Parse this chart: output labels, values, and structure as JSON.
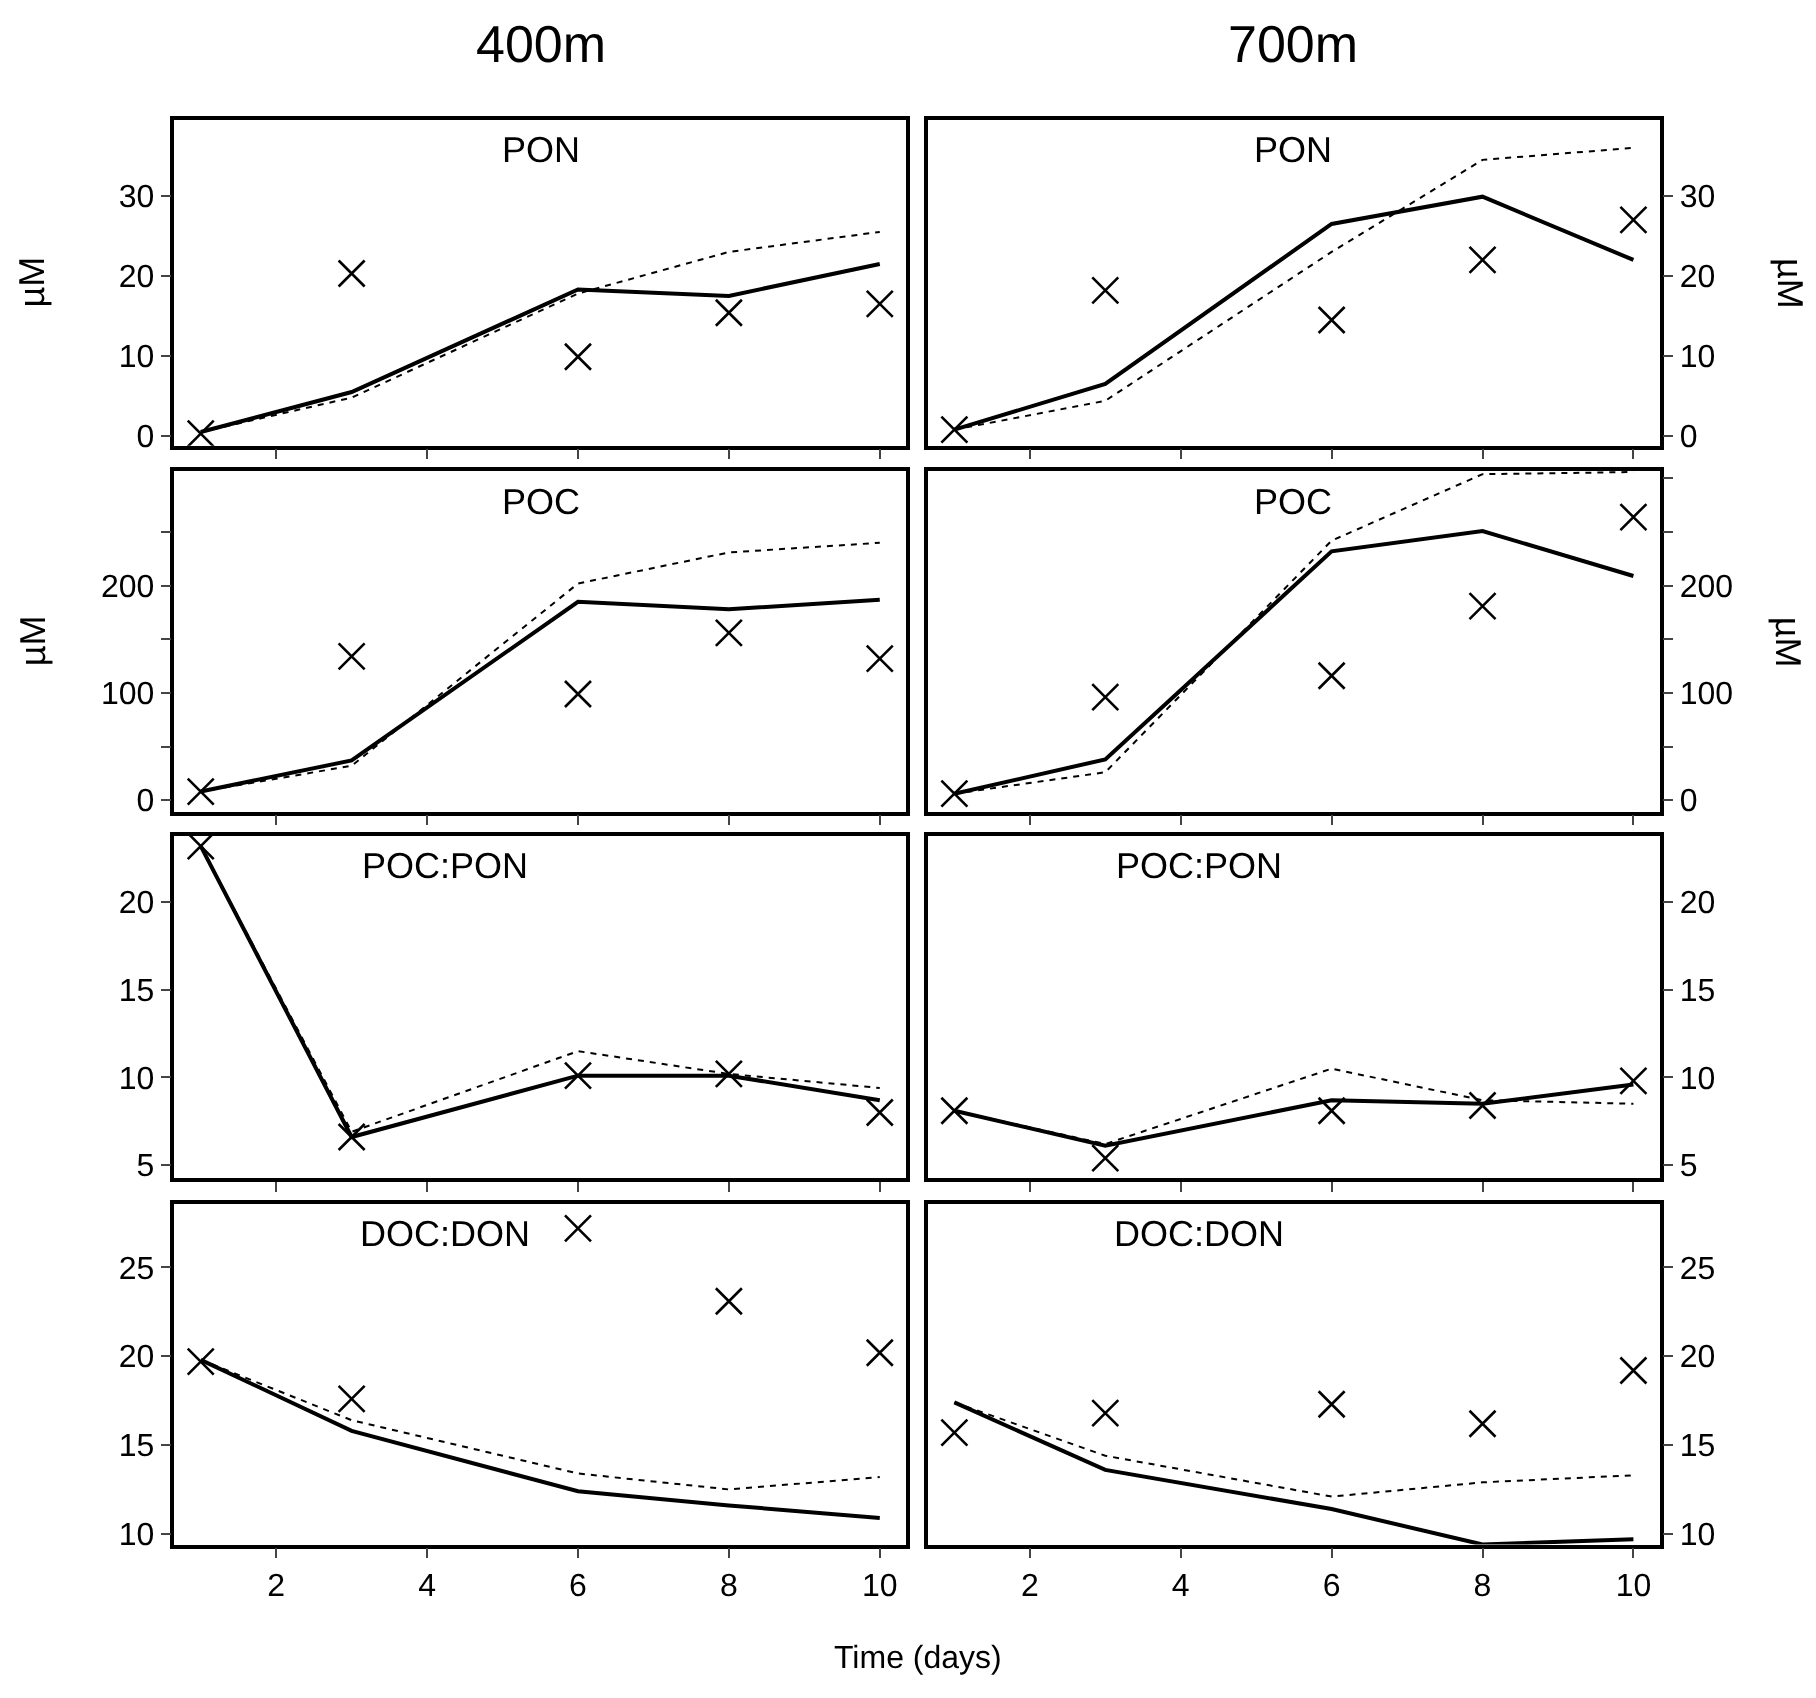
{
  "chart_data": [
    {
      "type": "line",
      "title": "400m",
      "annotations": [
        "PON"
      ],
      "ylabel": "µM",
      "x": [
        1,
        3,
        6,
        8,
        10
      ],
      "xlim": [
        0.65,
        10.35
      ],
      "xticks": [
        {
          "value": 2,
          "label": null
        },
        {
          "value": 4,
          "label": null
        },
        {
          "value": 6,
          "label": null
        },
        {
          "value": 8,
          "label": null
        },
        {
          "value": 10,
          "label": null
        }
      ],
      "ylim": [
        -1.2,
        39.5
      ],
      "yticks": [
        0,
        10,
        20,
        30
      ],
      "tick_labels": "y",
      "series": [
        {
          "color": "#000000",
          "line_style": "solid",
          "values": [
            0.5,
            5.5,
            18.3,
            17.5,
            21.5
          ]
        },
        {
          "color": "#000000",
          "line_style": "dotted",
          "values": [
            0.5,
            4.8,
            17.8,
            23,
            25.5
          ]
        },
        {
          "type": "scatter",
          "color": "#000000",
          "marker": "cross",
          "values": [
            0.3,
            20.3,
            9.9,
            15.4,
            16.5
          ]
        }
      ]
    },
    {
      "type": "line",
      "title": "700m",
      "annotations": [
        "PON"
      ],
      "ylabel": "µM",
      "x": [
        1,
        3,
        6,
        8,
        10
      ],
      "xlim": [
        0.65,
        10.35
      ],
      "xticks": [
        {
          "value": 2,
          "label": null
        },
        {
          "value": 4,
          "label": null
        },
        {
          "value": 6,
          "label": null
        },
        {
          "value": 8,
          "label": null
        },
        {
          "value": 10,
          "label": null
        }
      ],
      "ylim": [
        -1.2,
        39.5
      ],
      "yticks": [
        0,
        10,
        20,
        30
      ],
      "tick_labels": "y",
      "series": [
        {
          "color": "#000000",
          "line_style": "solid",
          "values": [
            0.8,
            6.5,
            26.5,
            29.9,
            22.0
          ]
        },
        {
          "color": "#000000",
          "line_style": "dotted",
          "values": [
            0.8,
            4.4,
            23,
            34.5,
            36
          ]
        },
        {
          "type": "scatter",
          "color": "#000000",
          "marker": "cross",
          "values": [
            0.8,
            18.2,
            14.5,
            22,
            27
          ]
        }
      ]
    },
    {
      "type": "line",
      "annotations": [
        "POC"
      ],
      "ylabel": "µM",
      "x": [
        1,
        3,
        6,
        8,
        10
      ],
      "xlim": [
        0.65,
        10.35
      ],
      "xticks": [
        {
          "value": 2,
          "label": null
        },
        {
          "value": 4,
          "label": null
        },
        {
          "value": 6,
          "label": null
        },
        {
          "value": 8,
          "label": null
        },
        {
          "value": 10,
          "label": null
        }
      ],
      "ylim": [
        -11,
        307
      ],
      "yticks": [
        0,
        {
          "value": 50,
          "label": null
        },
        100,
        {
          "value": 150,
          "label": null
        },
        200,
        {
          "value": 250,
          "label": null
        }
      ],
      "tick_labels": "y",
      "series": [
        {
          "color": "#000000",
          "line_style": "solid",
          "values": [
            8,
            37,
            185,
            178,
            187
          ]
        },
        {
          "color": "#000000",
          "line_style": "dotted",
          "values": [
            8,
            32,
            202,
            231,
            240
          ]
        },
        {
          "type": "scatter",
          "color": "#000000",
          "marker": "cross",
          "values": [
            8,
            134,
            99,
            156,
            132
          ]
        }
      ]
    },
    {
      "type": "line",
      "annotations": [
        "POC"
      ],
      "ylabel": "µM",
      "x": [
        1,
        3,
        6,
        8,
        10
      ],
      "xlim": [
        0.65,
        10.35
      ],
      "xticks": [
        {
          "value": 2,
          "label": null
        },
        {
          "value": 4,
          "label": null
        },
        {
          "value": 6,
          "label": null
        },
        {
          "value": 8,
          "label": null
        },
        {
          "value": 10,
          "label": null
        }
      ],
      "ylim": [
        -11,
        307
      ],
      "yticks": [
        0,
        {
          "value": 50,
          "label": null
        },
        100,
        {
          "value": 150,
          "label": null
        },
        200,
        {
          "value": 250,
          "label": null
        },
        {
          "value": 300,
          "label": null
        }
      ],
      "tick_labels": "y",
      "series": [
        {
          "color": "#000000",
          "line_style": "solid",
          "values": [
            6,
            38,
            232,
            251,
            209
          ]
        },
        {
          "color": "#000000",
          "line_style": "dotted",
          "values": [
            6,
            26,
            242,
            304,
            306
          ]
        },
        {
          "type": "scatter",
          "color": "#000000",
          "marker": "cross",
          "values": [
            6,
            96,
            116,
            181,
            264
          ]
        }
      ]
    },
    {
      "type": "line",
      "annotations": [
        "POC:PON"
      ],
      "x": [
        1,
        3,
        6,
        8,
        10
      ],
      "xlim": [
        0.65,
        10.35
      ],
      "xticks": [
        {
          "value": 2,
          "label": null
        },
        {
          "value": 4,
          "label": null
        },
        {
          "value": 6,
          "label": null
        },
        {
          "value": 8,
          "label": null
        },
        {
          "value": 10,
          "label": null
        }
      ],
      "ylim": [
        4.25,
        23.8
      ],
      "yticks": [
        5,
        10,
        15,
        20
      ],
      "tick_labels": "y",
      "series": [
        {
          "color": "#000000",
          "line_style": "solid",
          "values": [
            23.2,
            6.6,
            10.1,
            10.1,
            8.7
          ]
        },
        {
          "color": "#000000",
          "line_style": "dotted",
          "values": [
            23.2,
            6.9,
            11.5,
            10.2,
            9.4
          ]
        },
        {
          "type": "scatter",
          "color": "#000000",
          "marker": "cross",
          "values": [
            23.2,
            6.6,
            10.1,
            10.2,
            8.0
          ]
        }
      ]
    },
    {
      "type": "line",
      "annotations": [
        "POC:PON"
      ],
      "x": [
        1,
        3,
        6,
        8,
        10
      ],
      "xlim": [
        0.65,
        10.35
      ],
      "xticks": [
        {
          "value": 2,
          "label": null
        },
        {
          "value": 4,
          "label": null
        },
        {
          "value": 6,
          "label": null
        },
        {
          "value": 8,
          "label": null
        },
        {
          "value": 10,
          "label": null
        }
      ],
      "ylim": [
        4.25,
        23.8
      ],
      "yticks": [
        5,
        10,
        15,
        20
      ],
      "tick_labels": "y",
      "series": [
        {
          "color": "#000000",
          "line_style": "solid",
          "values": [
            8.1,
            6.1,
            8.7,
            8.5,
            9.6
          ]
        },
        {
          "color": "#000000",
          "line_style": "dotted",
          "values": [
            8.1,
            6.2,
            10.5,
            8.7,
            8.5
          ]
        },
        {
          "type": "scatter",
          "color": "#000000",
          "marker": "cross",
          "values": [
            8.1,
            5.4,
            8.1,
            8.4,
            9.8
          ]
        }
      ]
    },
    {
      "type": "line",
      "annotations": [
        "DOC:DON"
      ],
      "xlabel": "Time (days)",
      "x": [
        1,
        3,
        6,
        8,
        10
      ],
      "xlim": [
        0.65,
        10.35
      ],
      "xticks": [
        2,
        4,
        6,
        8,
        10
      ],
      "ylim": [
        9.4,
        28.6
      ],
      "yticks": [
        10,
        15,
        20,
        25
      ],
      "series": [
        {
          "color": "#000000",
          "line_style": "solid",
          "values": [
            19.8,
            15.8,
            12.4,
            11.6,
            10.9
          ]
        },
        {
          "color": "#000000",
          "line_style": "dotted",
          "values": [
            19.8,
            16.4,
            13.4,
            12.5,
            13.2
          ]
        },
        {
          "type": "scatter",
          "color": "#000000",
          "marker": "cross",
          "values": [
            19.7,
            17.6,
            27.2,
            23.1,
            20.2
          ]
        }
      ]
    },
    {
      "type": "line",
      "annotations": [
        "DOC:DON"
      ],
      "x": [
        1,
        3,
        6,
        8,
        10
      ],
      "xlim": [
        0.65,
        10.35
      ],
      "xticks": [
        2,
        4,
        6,
        8,
        10
      ],
      "ylim": [
        9.4,
        28.6
      ],
      "yticks": [
        10,
        15,
        20,
        25
      ],
      "series": [
        {
          "color": "#000000",
          "line_style": "solid",
          "values": [
            17.4,
            13.6,
            11.4,
            9.4,
            9.7
          ]
        },
        {
          "color": "#000000",
          "line_style": "dotted",
          "values": [
            17.4,
            14.4,
            12.1,
            12.9,
            13.3
          ]
        },
        {
          "type": "scatter",
          "color": "#000000",
          "marker": "cross",
          "values": [
            15.7,
            16.8,
            17.3,
            16.2,
            19.2
          ]
        }
      ]
    }
  ]
}
